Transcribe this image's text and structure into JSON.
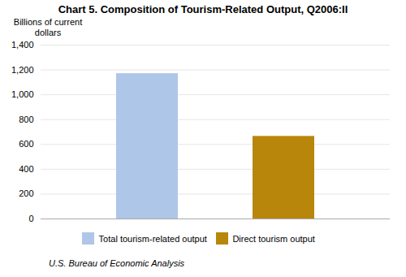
{
  "chart_data": {
    "type": "bar",
    "title": "Chart 5. Composition of Tourism-Related Output, Q2006:II",
    "ylabel": "Billions of current\ndollars",
    "categories": [
      "Total tourism-related output",
      "Direct tourism output"
    ],
    "values": [
      1170,
      665
    ],
    "colors": [
      "#aec6e8",
      "#b8860b"
    ],
    "ylim": [
      0,
      1400
    ],
    "yticks": [
      0,
      200,
      400,
      600,
      800,
      {
        "value": 1000,
        "label": "1,000"
      },
      {
        "value": 1200,
        "label": "1,200"
      },
      {
        "value": 1400,
        "label": "1,400"
      }
    ],
    "grid": true,
    "legend": "bottom",
    "tick_labels": "y",
    "caption": "U.S. Bureau of Economic Analysis"
  }
}
